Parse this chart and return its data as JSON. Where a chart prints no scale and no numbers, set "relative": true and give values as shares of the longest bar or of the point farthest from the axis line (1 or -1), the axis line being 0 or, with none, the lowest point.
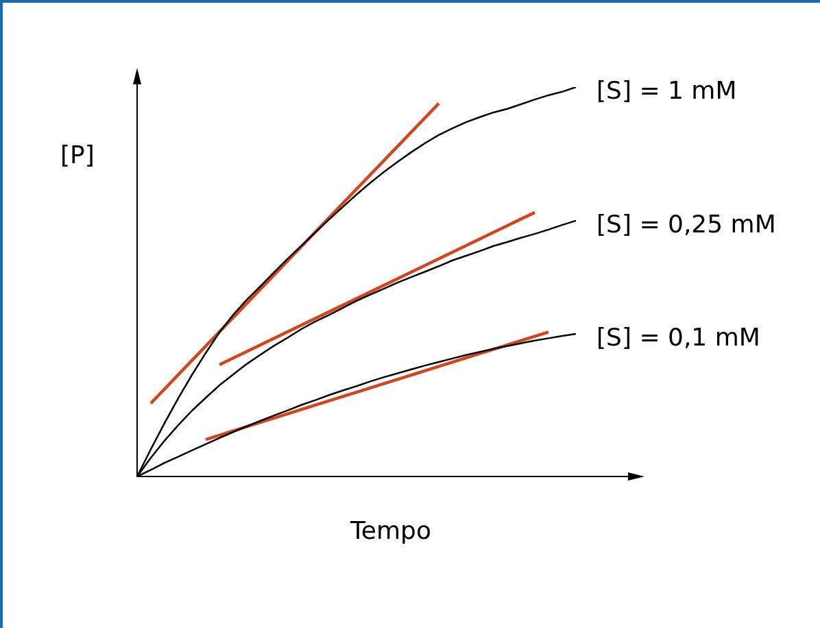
{
  "chart_data": {
    "type": "line",
    "relative": true,
    "xlabel": "Tempo",
    "ylabel": "[P]",
    "legend": false,
    "grid": false,
    "marker": "none",
    "line_style": "solid",
    "categories": [
      null,
      null,
      null,
      null,
      null,
      null,
      null,
      null,
      null,
      null,
      null,
      null,
      null,
      null,
      null,
      null,
      null,
      null,
      null,
      null,
      null,
      null,
      null,
      null,
      null,
      null,
      null,
      null,
      null,
      null,
      null,
      null,
      null
    ],
    "series": [
      {
        "name": "[S] = 1 mM",
        "color": "#000000",
        "values": [
          0,
          0.07,
          0.137,
          0.201,
          0.261,
          0.317,
          0.37,
          0.415,
          0.454,
          0.489,
          0.525,
          0.56,
          0.593,
          0.627,
          0.66,
          0.692,
          0.724,
          0.754,
          0.782,
          0.808,
          0.833,
          0.856,
          0.877,
          0.894,
          0.91,
          0.923,
          0.935,
          0.944,
          0.956,
          0.968,
          0.979,
          0.988,
          1
        ]
      },
      {
        "name": "[S] = 0,25 mM",
        "color": "#000000",
        "values": [
          0,
          0.048,
          0.092,
          0.132,
          0.169,
          0.202,
          0.234,
          0.262,
          0.289,
          0.313,
          0.336,
          0.357,
          0.379,
          0.398,
          0.415,
          0.433,
          0.451,
          0.467,
          0.482,
          0.498,
          0.512,
          0.526,
          0.54,
          0.555,
          0.567,
          0.579,
          0.592,
          0.602,
          0.613,
          0.623,
          0.634,
          0.646,
          0.657
        ]
      },
      {
        "name": "[S] = 0,1 mM",
        "color": "#000000",
        "values": [
          0,
          0.017,
          0.035,
          0.051,
          0.067,
          0.083,
          0.099,
          0.114,
          0.129,
          0.143,
          0.157,
          0.17,
          0.184,
          0.196,
          0.209,
          0.221,
          0.232,
          0.244,
          0.255,
          0.265,
          0.275,
          0.285,
          0.294,
          0.303,
          0.312,
          0.32,
          0.328,
          0.335,
          0.342,
          0.349,
          0.355,
          0.361,
          0.366
        ]
      },
      {
        "color": "#d4451b",
        "values": [
          null,
          0.188,
          null,
          null,
          null,
          null,
          null,
          null,
          null,
          null,
          null,
          null,
          null,
          null,
          null,
          null,
          null,
          null,
          null,
          null,
          null,
          null,
          0.958,
          null,
          null,
          null,
          null,
          null,
          null,
          null,
          null,
          null,
          null
        ]
      },
      {
        "color": "#d4451b",
        "values": [
          null,
          null,
          null,
          null,
          null,
          null,
          0.287,
          null,
          null,
          null,
          null,
          null,
          null,
          null,
          null,
          null,
          null,
          null,
          null,
          null,
          null,
          null,
          null,
          null,
          null,
          null,
          null,
          null,
          null,
          0.678,
          null,
          null,
          null
        ]
      },
      {
        "color": "#d4451b",
        "values": [
          null,
          null,
          null,
          null,
          null,
          0.095,
          null,
          null,
          null,
          null,
          null,
          null,
          null,
          null,
          null,
          null,
          null,
          null,
          null,
          null,
          null,
          null,
          null,
          null,
          null,
          null,
          null,
          null,
          null,
          null,
          0.371,
          null,
          null
        ]
      }
    ]
  }
}
